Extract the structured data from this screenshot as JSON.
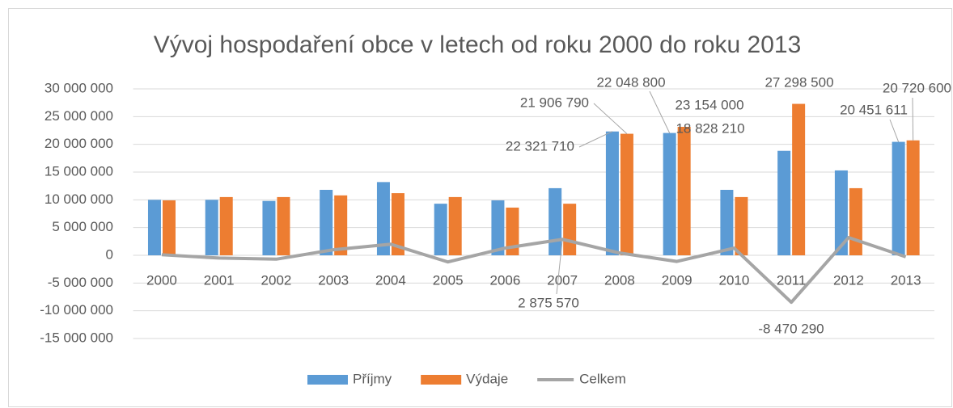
{
  "chart_data": {
    "type": "bar",
    "title": "Vývoj hospodaření obce v letech od roku 2000 do roku 2013",
    "categories": [
      "2000",
      "2001",
      "2002",
      "2003",
      "2004",
      "2005",
      "2006",
      "2007",
      "2008",
      "2009",
      "2010",
      "2011",
      "2012",
      "2013"
    ],
    "series": [
      {
        "name": "Příjmy",
        "color": "#5b9bd5",
        "type": "bar",
        "values": [
          10000000,
          10000000,
          9800000,
          11800000,
          13200000,
          9300000,
          9900000,
          12100000,
          22321710,
          22048800,
          11800000,
          18828210,
          15300000,
          20451611
        ],
        "value_labels": [
          null,
          null,
          null,
          null,
          null,
          null,
          null,
          null,
          "22 321 710",
          "22 048 800",
          null,
          "18 828 210",
          null,
          "20 451 611"
        ]
      },
      {
        "name": "Výdaje",
        "color": "#ed7d31",
        "type": "bar",
        "values": [
          9900000,
          10500000,
          10500000,
          10800000,
          11200000,
          10500000,
          8600000,
          9300000,
          21906790,
          23154000,
          10500000,
          27298500,
          12100000,
          20720600
        ],
        "value_labels": [
          null,
          null,
          null,
          null,
          null,
          null,
          null,
          null,
          "21 906 790",
          "23 154 000",
          null,
          "27 298 500",
          null,
          "20 720 600"
        ]
      },
      {
        "name": "Celkem",
        "color": "#a5a5a5",
        "type": "line",
        "values": [
          100000,
          -500000,
          -700000,
          1000000,
          2000000,
          -1200000,
          1300000,
          2875570,
          414920,
          -1105200,
          1300000,
          -8470290,
          3200000,
          -268989
        ],
        "value_labels": [
          null,
          null,
          null,
          null,
          null,
          null,
          null,
          "2 875 570",
          null,
          null,
          null,
          "-8 470 290",
          null,
          null
        ]
      }
    ],
    "ylim": [
      -15000000,
      30000000
    ],
    "yticks": [
      {
        "value": -15000000,
        "label": "-15 000 000"
      },
      {
        "value": -10000000,
        "label": "-10 000 000"
      },
      {
        "value": -5000000,
        "label": "-5 000 000"
      },
      0,
      {
        "value": 5000000,
        "label": "5 000 000"
      },
      {
        "value": 10000000,
        "label": "10 000 000"
      },
      {
        "value": 15000000,
        "label": "15 000 000"
      },
      {
        "value": 20000000,
        "label": "20 000 000"
      },
      {
        "value": 25000000,
        "label": "25 000 000"
      },
      {
        "value": 30000000,
        "label": "30 000 000"
      }
    ],
    "grid": true,
    "legend": "bottom"
  }
}
